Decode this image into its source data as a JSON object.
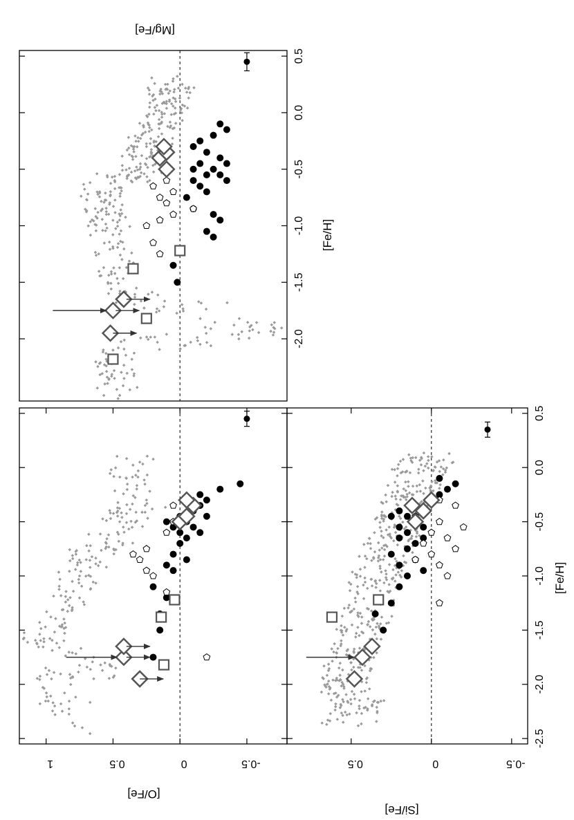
{
  "figure": {
    "description_free": true,
    "colors": {
      "gray_points": "#9a9a9a",
      "black_points": "#000000",
      "open_markers": "#555555",
      "reference_line": "#000000"
    },
    "orientation": "rotated 90 degrees counter-clockwise (panels read with page turned)"
  },
  "chart_data": [
    {
      "panel": "O-Fe",
      "type": "scatter",
      "xlabel": "[Fe/H]",
      "ylabel": "[O/Fe]",
      "xlim": [
        -2.55,
        0.55
      ],
      "ylim": [
        -0.8,
        1.2
      ],
      "xticks": [
        "-2.5",
        "-2.0",
        "-1.5",
        "-1.0",
        "-0.5",
        "0.0",
        "0.5"
      ],
      "yticks": [
        "1",
        "0.5",
        "0",
        "-0.5"
      ],
      "show_x_tick_labels": false,
      "reference_line_y": 0,
      "error_bar": {
        "x": 0.45,
        "y": -0.5,
        "xerr": 0.07
      },
      "series": [
        {
          "kind": "gray",
          "seed": 11,
          "count": 230,
          "points": [
            [
              -2.4,
              0.73
            ],
            [
              -1.95,
              0.96
            ],
            [
              -1.85,
              0.48
            ],
            [
              -1.62,
              1.07
            ],
            [
              -1.45,
              0.88
            ],
            [
              -1.2,
              0.82
            ],
            [
              -1.0,
              0.75
            ],
            [
              -0.85,
              0.7
            ],
            [
              -0.7,
              0.55
            ],
            [
              -0.5,
              0.45
            ],
            [
              -0.3,
              0.25
            ],
            [
              -0.1,
              0.4
            ],
            [
              0.05,
              0.3
            ]
          ]
        },
        {
          "kind": "black",
          "points": [
            [
              -1.75,
              0.2
            ],
            [
              -1.5,
              0.15
            ],
            [
              -1.35,
              0.15
            ],
            [
              -1.2,
              0.1
            ],
            [
              -1.1,
              0.2
            ],
            [
              -0.95,
              0.05
            ],
            [
              -0.9,
              0.1
            ],
            [
              -0.85,
              -0.05
            ],
            [
              -0.8,
              0.05
            ],
            [
              -0.7,
              0.0
            ],
            [
              -0.65,
              -0.05
            ],
            [
              -0.6,
              0.0
            ],
            [
              -0.55,
              -0.1
            ],
            [
              -0.5,
              0.1
            ],
            [
              -0.45,
              0.0
            ],
            [
              -0.4,
              -0.1
            ],
            [
              -0.35,
              -0.15
            ],
            [
              -0.3,
              -0.2
            ],
            [
              -0.25,
              -0.15
            ],
            [
              -0.2,
              -0.3
            ],
            [
              -0.15,
              -0.45
            ],
            [
              -0.55,
              0.05
            ],
            [
              -0.6,
              -0.15
            ],
            [
              -0.5,
              -0.05
            ],
            [
              -0.45,
              -0.2
            ]
          ]
        },
        {
          "kind": "pentagon",
          "points": [
            [
              -1.75,
              -0.2
            ],
            [
              -1.15,
              0.1
            ],
            [
              -1.0,
              0.2
            ],
            [
              -0.95,
              0.25
            ],
            [
              -0.85,
              0.3
            ],
            [
              -0.8,
              0.35
            ],
            [
              -0.75,
              0.25
            ],
            [
              -0.6,
              0.1
            ],
            [
              -0.5,
              0.05
            ],
            [
              -0.35,
              0.05
            ]
          ]
        },
        {
          "kind": "square",
          "points": [
            [
              -1.82,
              0.12
            ],
            [
              -1.38,
              0.14
            ],
            [
              -1.22,
              0.04
            ]
          ]
        },
        {
          "kind": "diamond",
          "points": [
            [
              -1.95,
              0.3
            ],
            [
              -1.75,
              0.42
            ],
            [
              -1.65,
              0.42
            ],
            [
              -0.5,
              0.0
            ],
            [
              -0.45,
              -0.05
            ],
            [
              -0.35,
              -0.1
            ],
            [
              -0.3,
              -0.05
            ]
          ]
        },
        {
          "kind": "upper_limit_arrow",
          "points": [
            [
              -1.95,
              0.3
            ],
            [
              -1.75,
              0.4
            ],
            [
              -1.65,
              0.4
            ]
          ]
        },
        {
          "kind": "pointer_arrow",
          "from": [
            -1.75,
            0.85
          ],
          "to": [
            -1.75,
            0.47
          ]
        }
      ]
    },
    {
      "panel": "Mg-Fe",
      "type": "scatter",
      "xlabel": "[Fe/H]",
      "ylabel": "[Mg/Fe]",
      "xlim": [
        -2.55,
        0.55
      ],
      "ylim": [
        -0.8,
        1.2
      ],
      "xticks": [
        "-2.0",
        "-1.5",
        "-1.0",
        "-0.5",
        "0.0",
        "0.5"
      ],
      "yticks": [],
      "show_x_tick_labels": true,
      "reference_line_y": 0,
      "error_bar": {
        "x": 0.45,
        "y": -0.5,
        "xerr": 0.08
      },
      "series": [
        {
          "kind": "gray",
          "seed": 23,
          "count": 420,
          "points": [
            [
              -2.5,
              0.45
            ],
            [
              -2.1,
              0.5
            ],
            [
              -1.9,
              -0.7
            ],
            [
              -1.6,
              0.45
            ],
            [
              -1.2,
              0.5
            ],
            [
              -0.9,
              0.55
            ],
            [
              -0.7,
              0.6
            ],
            [
              -0.5,
              0.3
            ],
            [
              -0.3,
              0.25
            ],
            [
              -0.1,
              0.15
            ],
            [
              0.1,
              0.1
            ],
            [
              0.3,
              0.05
            ]
          ]
        },
        {
          "kind": "black",
          "points": [
            [
              -1.5,
              0.02
            ],
            [
              -1.35,
              0.05
            ],
            [
              -1.1,
              -0.25
            ],
            [
              -1.05,
              -0.2
            ],
            [
              -0.95,
              -0.3
            ],
            [
              -0.9,
              -0.25
            ],
            [
              -0.85,
              -0.1
            ],
            [
              -0.75,
              -0.05
            ],
            [
              -0.7,
              -0.2
            ],
            [
              -0.65,
              -0.15
            ],
            [
              -0.6,
              -0.1
            ],
            [
              -0.55,
              -0.2
            ],
            [
              -0.5,
              -0.25
            ],
            [
              -0.45,
              -0.15
            ],
            [
              -0.4,
              -0.3
            ],
            [
              -0.35,
              -0.2
            ],
            [
              -0.3,
              -0.1
            ],
            [
              -0.25,
              -0.15
            ],
            [
              -0.2,
              -0.25
            ],
            [
              -0.15,
              -0.35
            ],
            [
              -0.1,
              -0.3
            ],
            [
              -0.55,
              -0.3
            ],
            [
              -0.45,
              -0.35
            ],
            [
              -0.6,
              -0.35
            ],
            [
              -0.5,
              -0.1
            ]
          ]
        },
        {
          "kind": "pentagon",
          "points": [
            [
              -1.25,
              0.15
            ],
            [
              -1.15,
              0.2
            ],
            [
              -1.0,
              0.25
            ],
            [
              -0.95,
              0.15
            ],
            [
              -0.9,
              0.05
            ],
            [
              -0.85,
              -0.1
            ],
            [
              -0.8,
              0.1
            ],
            [
              -0.75,
              0.15
            ],
            [
              -0.7,
              0.05
            ],
            [
              -0.65,
              0.2
            ],
            [
              -0.6,
              0.1
            ]
          ]
        },
        {
          "kind": "square",
          "points": [
            [
              -2.18,
              0.5
            ],
            [
              -1.82,
              0.25
            ],
            [
              -1.38,
              0.35
            ],
            [
              -1.22,
              0.0
            ]
          ]
        },
        {
          "kind": "diamond",
          "points": [
            [
              -1.95,
              0.52
            ],
            [
              -1.75,
              0.5
            ],
            [
              -1.65,
              0.42
            ],
            [
              -0.5,
              0.1
            ],
            [
              -0.4,
              0.15
            ],
            [
              -0.35,
              0.1
            ],
            [
              -0.3,
              0.12
            ]
          ]
        },
        {
          "kind": "upper_limit_arrow",
          "points": [
            [
              -1.95,
              0.5
            ],
            [
              -1.75,
              0.48
            ],
            [
              -1.65,
              0.4
            ]
          ]
        },
        {
          "kind": "pointer_arrow",
          "from": [
            -1.75,
            0.95
          ],
          "to": [
            -1.75,
            0.55
          ]
        }
      ]
    },
    {
      "panel": "Si-Fe",
      "type": "scatter",
      "xlabel": "[Fe/H]",
      "ylabel": "[Si/Fe]",
      "xlim": [
        -2.55,
        0.55
      ],
      "ylim": [
        -0.6,
        0.9
      ],
      "xticks": [
        "-2.5",
        "-2.0",
        "-1.5",
        "-1.0",
        "-0.5",
        "0.0",
        "0.5"
      ],
      "yticks": [
        "0.5",
        "0",
        "-0.5"
      ],
      "show_x_tick_labels": true,
      "reference_line_y": 0,
      "error_bar": {
        "x": 0.35,
        "y": -0.35,
        "xerr": 0.07
      },
      "series": [
        {
          "kind": "gray",
          "seed": 37,
          "count": 480,
          "points": [
            [
              -2.35,
              0.55
            ],
            [
              -2.2,
              0.45
            ],
            [
              -2.0,
              0.55
            ],
            [
              -1.8,
              0.5
            ],
            [
              -1.55,
              0.45
            ],
            [
              -1.3,
              0.4
            ],
            [
              -1.05,
              0.35
            ],
            [
              -0.85,
              0.3
            ],
            [
              -0.65,
              0.25
            ],
            [
              -0.45,
              0.2
            ],
            [
              -0.25,
              0.12
            ],
            [
              -0.05,
              0.08
            ],
            [
              0.1,
              0.02
            ]
          ]
        },
        {
          "kind": "black",
          "points": [
            [
              -1.5,
              0.3
            ],
            [
              -1.35,
              0.35
            ],
            [
              -1.25,
              0.25
            ],
            [
              -1.1,
              0.2
            ],
            [
              -1.0,
              0.15
            ],
            [
              -0.95,
              0.05
            ],
            [
              -0.9,
              0.2
            ],
            [
              -0.85,
              0.1
            ],
            [
              -0.8,
              0.25
            ],
            [
              -0.75,
              0.15
            ],
            [
              -0.7,
              0.1
            ],
            [
              -0.65,
              0.2
            ],
            [
              -0.6,
              0.15
            ],
            [
              -0.55,
              0.05
            ],
            [
              -0.5,
              0.1
            ],
            [
              -0.45,
              0.15
            ],
            [
              -0.4,
              0.05
            ],
            [
              -0.35,
              0.1
            ],
            [
              -0.3,
              0.0
            ],
            [
              -0.25,
              -0.05
            ],
            [
              -0.2,
              -0.1
            ],
            [
              -0.15,
              -0.15
            ],
            [
              -0.1,
              -0.05
            ],
            [
              -0.55,
              0.2
            ],
            [
              -0.45,
              0.25
            ],
            [
              -0.65,
              0.05
            ],
            [
              -0.4,
              0.2
            ]
          ]
        },
        {
          "kind": "pentagon",
          "points": [
            [
              -1.25,
              -0.05
            ],
            [
              -1.0,
              -0.1
            ],
            [
              -0.9,
              -0.05
            ],
            [
              -0.85,
              0.1
            ],
            [
              -0.8,
              0.0
            ],
            [
              -0.75,
              -0.15
            ],
            [
              -0.7,
              0.05
            ],
            [
              -0.65,
              -0.1
            ],
            [
              -0.6,
              0.0
            ],
            [
              -0.55,
              -0.2
            ],
            [
              -0.5,
              -0.05
            ],
            [
              -0.45,
              0.1
            ],
            [
              -0.35,
              -0.15
            ],
            [
              -0.3,
              -0.05
            ]
          ]
        },
        {
          "kind": "square",
          "points": [
            [
              -1.38,
              0.62
            ],
            [
              -1.22,
              0.33
            ]
          ]
        },
        {
          "kind": "diamond",
          "points": [
            [
              -1.95,
              0.48
            ],
            [
              -1.75,
              0.43
            ],
            [
              -1.65,
              0.37
            ],
            [
              -0.5,
              0.1
            ],
            [
              -0.4,
              0.05
            ],
            [
              -0.35,
              0.12
            ],
            [
              -0.3,
              0.0
            ]
          ]
        },
        {
          "kind": "pointer_arrow",
          "from": [
            -1.75,
            0.78
          ],
          "to": [
            -1.75,
            0.48
          ]
        }
      ]
    }
  ]
}
